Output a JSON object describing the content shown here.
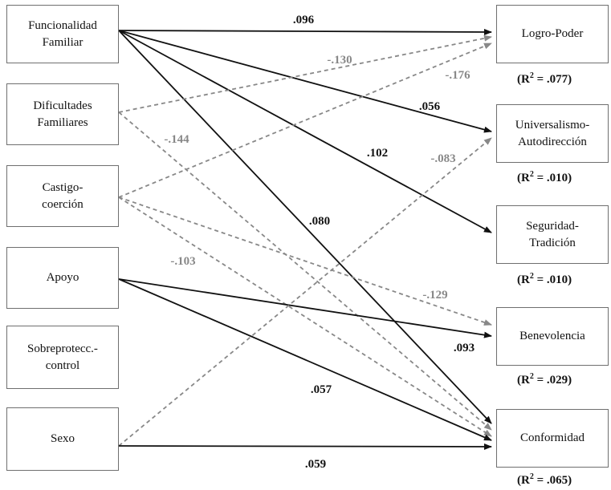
{
  "predictors": [
    {
      "id": "ff",
      "lines": [
        "Funcionalidad",
        "Familiar"
      ]
    },
    {
      "id": "df",
      "lines": [
        "Dificultades",
        "Familiares"
      ]
    },
    {
      "id": "cc",
      "lines": [
        "Castigo-",
        "coerción"
      ]
    },
    {
      "id": "ap",
      "lines": [
        "Apoyo",
        ""
      ]
    },
    {
      "id": "sc",
      "lines": [
        "Sobreprotecc.-",
        "control"
      ]
    },
    {
      "id": "sx",
      "lines": [
        "Sexo",
        ""
      ]
    }
  ],
  "outcomes": [
    {
      "id": "lp",
      "lines": [
        "Logro-Poder",
        ""
      ],
      "r2": "= .077)"
    },
    {
      "id": "ua",
      "lines": [
        "Universalismo-",
        "Autodirección"
      ],
      "r2": "= .010)"
    },
    {
      "id": "st",
      "lines": [
        "Seguridad-",
        "Tradición"
      ],
      "r2": "= .010)"
    },
    {
      "id": "be",
      "lines": [
        "Benevolencia",
        ""
      ],
      "r2": "= .029)"
    },
    {
      "id": "co",
      "lines": [
        "Conformidad",
        ""
      ],
      "r2": "= .065)"
    }
  ],
  "r2_prefix": "(R",
  "r2_sup": "2",
  "paths": [
    {
      "from": "ff",
      "to": "lp",
      "coef": ".096",
      "sign": "pos"
    },
    {
      "from": "ff",
      "to": "ua",
      "coef": ".056",
      "sign": "pos"
    },
    {
      "from": "ff",
      "to": "st",
      "coef": ".102",
      "sign": "pos"
    },
    {
      "from": "ff",
      "to": "co",
      "coef": ".080",
      "sign": "pos"
    },
    {
      "from": "df",
      "to": "lp",
      "coef": "-.130",
      "sign": "neg"
    },
    {
      "from": "df",
      "to": "co",
      "coef": "-.144",
      "sign": "neg"
    },
    {
      "from": "cc",
      "to": "lp",
      "coef": "-.176",
      "sign": "neg"
    },
    {
      "from": "cc",
      "to": "be",
      "coef": "-.129",
      "sign": "neg"
    },
    {
      "from": "cc",
      "to": "co",
      "coef": "-.103",
      "sign": "neg"
    },
    {
      "from": "ap",
      "to": "be",
      "coef": ".093",
      "sign": "pos"
    },
    {
      "from": "ap",
      "to": "co",
      "coef": ".057",
      "sign": "pos"
    },
    {
      "from": "sx",
      "to": "ua",
      "coef": "-.083",
      "sign": "neg"
    },
    {
      "from": "sx",
      "to": "co",
      "coef": ".059",
      "sign": "pos"
    }
  ]
}
